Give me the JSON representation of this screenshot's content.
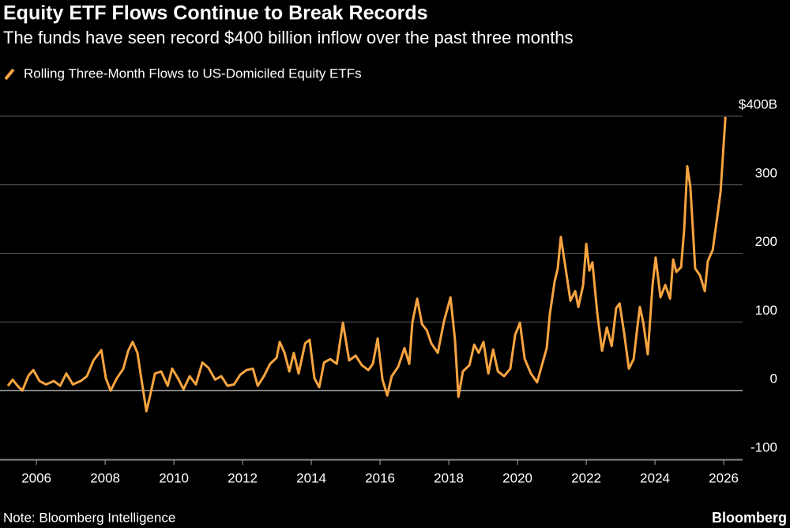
{
  "chart_data": {
    "type": "line",
    "title": "Equity ETF Flows Continue to Break Records",
    "subtitle": "The funds have seen record $400 billion inflow over the past three months",
    "source": "Note: Bloomberg Intelligence",
    "credit": "Bloomberg",
    "x": [
      2005.17,
      2005.31,
      2005.45,
      2005.59,
      2005.77,
      2005.91,
      2006.09,
      2006.28,
      2006.51,
      2006.69,
      2006.87,
      2007.06,
      2007.29,
      2007.47,
      2007.66,
      2007.89,
      2008.02,
      2008.16,
      2008.34,
      2008.53,
      2008.67,
      2008.8,
      2008.94,
      2009.03,
      2009.2,
      2009.31,
      2009.45,
      2009.63,
      2009.82,
      2009.95,
      2010.14,
      2010.28,
      2010.46,
      2010.64,
      2010.83,
      2011.01,
      2011.2,
      2011.38,
      2011.56,
      2011.75,
      2011.93,
      2012.11,
      2012.3,
      2012.44,
      2012.62,
      2012.8,
      2012.99,
      2013.08,
      2013.22,
      2013.36,
      2013.49,
      2013.63,
      2013.82,
      2013.95,
      2014.09,
      2014.23,
      2014.37,
      2014.55,
      2014.74,
      2014.92,
      2015.1,
      2015.29,
      2015.47,
      2015.66,
      2015.79,
      2015.93,
      2016.07,
      2016.21,
      2016.34,
      2016.53,
      2016.71,
      2016.85,
      2016.94,
      2017.08,
      2017.22,
      2017.36,
      2017.49,
      2017.68,
      2017.86,
      2018.05,
      2018.18,
      2018.28,
      2018.41,
      2018.6,
      2018.74,
      2018.87,
      2019.01,
      2019.15,
      2019.29,
      2019.43,
      2019.61,
      2019.79,
      2019.93,
      2020.07,
      2020.21,
      2020.39,
      2020.57,
      2020.71,
      2020.85,
      2020.94,
      2021.08,
      2021.17,
      2021.26,
      2021.4,
      2021.54,
      2021.68,
      2021.77,
      2021.91,
      2022.0,
      2022.09,
      2022.18,
      2022.32,
      2022.46,
      2022.6,
      2022.74,
      2022.87,
      2022.97,
      2023.1,
      2023.24,
      2023.38,
      2023.47,
      2023.56,
      2023.66,
      2023.79,
      2023.93,
      2024.02,
      2024.16,
      2024.3,
      2024.44,
      2024.53,
      2024.62,
      2024.76,
      2024.85,
      2024.94,
      2025.03,
      2025.17,
      2025.31,
      2025.45,
      2025.54,
      2025.68,
      2025.82,
      2025.91,
      2026.05
    ],
    "series": [
      {
        "name": "Rolling Three-Month Flows to US-Domiciled Equity ETFs",
        "color": "#f7a440",
        "values": [
          7,
          16,
          7,
          0,
          22,
          30,
          14,
          9,
          14,
          7,
          25,
          9,
          14,
          21,
          44,
          59,
          18,
          0,
          18,
          32,
          58,
          71,
          55,
          25,
          -30,
          -7,
          25,
          28,
          7,
          32,
          16,
          2,
          21,
          9,
          41,
          33,
          16,
          21,
          7,
          9,
          23,
          30,
          32,
          7,
          21,
          39,
          48,
          71,
          55,
          28,
          55,
          25,
          69,
          74,
          18,
          5,
          41,
          46,
          39,
          99,
          44,
          51,
          37,
          30,
          39,
          76,
          16,
          -7,
          21,
          35,
          62,
          39,
          99,
          134,
          97,
          88,
          69,
          55,
          101,
          136,
          74,
          -9,
          28,
          37,
          67,
          55,
          71,
          25,
          60,
          28,
          21,
          32,
          81,
          99,
          46,
          25,
          12,
          37,
          62,
          111,
          159,
          178,
          224,
          178,
          131,
          145,
          122,
          154,
          214,
          175,
          187,
          113,
          58,
          92,
          65,
          120,
          127,
          85,
          32,
          46,
          85,
          122,
          99,
          53,
          154,
          194,
          136,
          154,
          134,
          191,
          173,
          180,
          235,
          327,
          297,
          178,
          168,
          145,
          189,
          205,
          256,
          290,
          399
        ]
      }
    ],
    "xlim": [
      2004.94,
      2026.55
    ],
    "xticks": [
      2006,
      2008,
      2010,
      2012,
      2014,
      2016,
      2018,
      2020,
      2022,
      2024,
      2026
    ],
    "ylim": [
      -100,
      400
    ],
    "yticks": [
      -100,
      0,
      100,
      200,
      {
        "value": 300,
        "label": "300"
      },
      {
        "value": 400,
        "label": "$400B"
      }
    ],
    "grid": true
  }
}
